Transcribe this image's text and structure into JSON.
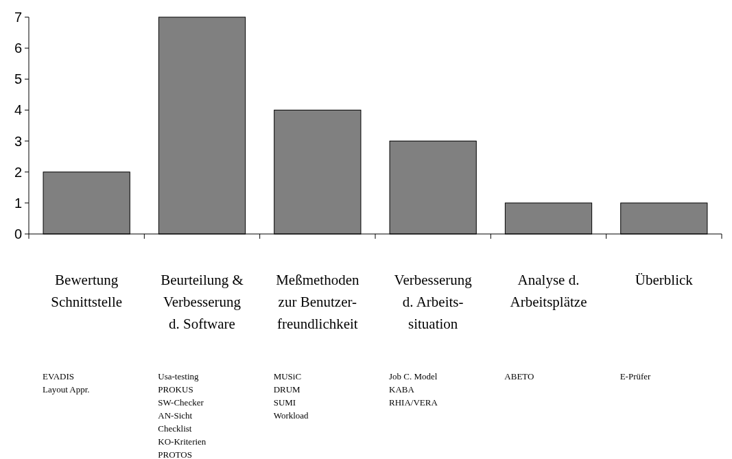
{
  "chart_data": {
    "type": "bar",
    "categories": [
      "Bewertung\nSchnittstelle",
      "Beurteilung &\nVerbesserung\nd. Software",
      "Meßmethoden\nzur Benutzer-\nfreundlichkeit",
      "Verbesserung\nd. Arbeits-\nsituation",
      "Analyse d.\nArbeitsplätze",
      "Überblick"
    ],
    "values": [
      2,
      7,
      4,
      3,
      1,
      1
    ],
    "color": "#808080",
    "ylim": [
      0,
      7
    ],
    "yticks": [
      0,
      1,
      2,
      3,
      4,
      5,
      6,
      7
    ],
    "grid": false,
    "annotations": [
      "EVADIS\nLayout Appr.",
      "Usa-testing\nPROKUS\nSW-Checker\nAN-Sicht\nChecklist\nKO-Kriterien\nPROTOS",
      "MUSiC\nDRUM\nSUMI\nWorkload",
      "Job C. Model\nKABA\nRHIA/VERA",
      "ABETO",
      "E-Prüfer"
    ]
  }
}
